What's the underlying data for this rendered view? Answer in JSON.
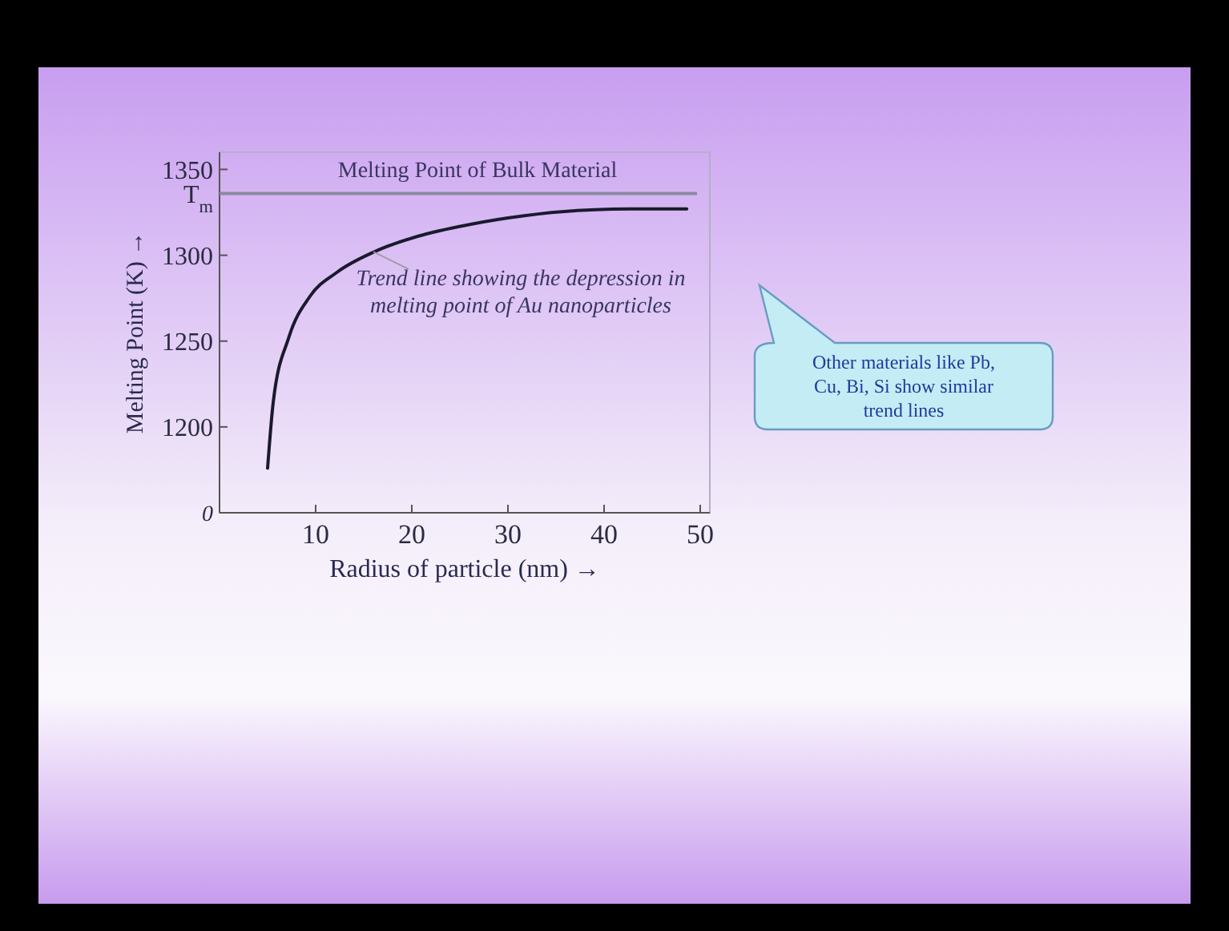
{
  "chart_data": {
    "type": "line",
    "xlabel": "Radius of particle (nm) →",
    "ylabel": "Melting Point (K) →",
    "xlim": [
      0,
      51
    ],
    "ylim": [
      1150,
      1360
    ],
    "xticks": [
      10,
      20,
      30,
      40,
      50
    ],
    "yticks": [
      1200,
      1250,
      1300,
      {
        "value": 1336,
        "label": "T$_{m}$"
      },
      1350
    ],
    "grid": false,
    "marker": "none",
    "line_style": "solid",
    "series": [
      {
        "color": "#1a1a2e",
        "x": [
          5,
          5.6,
          7.2,
          9.4,
          12.2,
          16.1,
          20.6,
          26.1,
          31.7,
          37.2,
          42.8,
          48.6
        ],
        "values": [
          1176,
          1215,
          1252,
          1276,
          1290,
          1302,
          1311,
          1318,
          1323,
          1326,
          1327,
          1327
        ]
      }
    ],
    "ref_lines": [
      {
        "axis": "y",
        "value": 1336,
        "label": "Melting Point of Bulk Material",
        "color": "#8a8aa0",
        "line_style": "solid"
      }
    ],
    "annotations": [
      "0",
      {
        "text": "Trend line showing the depression in melting point of Au nanoparticles",
        "x": 16,
        "y": 1302
      },
      "Other materials like Pb, Cu, Bi, Si show similar trend lines"
    ]
  }
}
